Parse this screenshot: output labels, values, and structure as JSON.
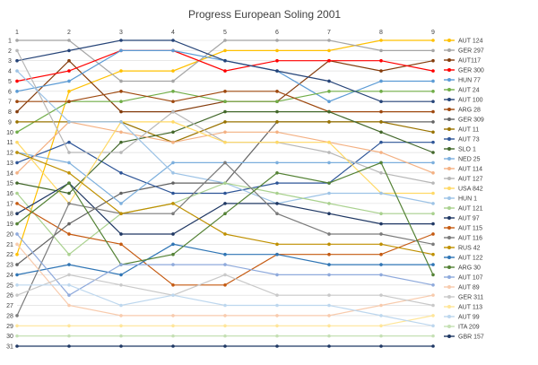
{
  "chart_data": {
    "type": "line",
    "title": "Progress European Soling 2001",
    "xlabel": "",
    "ylabel": "",
    "x": [
      1,
      2,
      3,
      4,
      5,
      6,
      7,
      8,
      9
    ],
    "ylim": [
      1,
      31
    ],
    "y_inverted": true,
    "grid": true,
    "legend": "right",
    "series": [
      {
        "name": "AUT 124",
        "color": "#ffc000",
        "values": [
          22,
          6,
          4,
          4,
          2,
          2,
          2,
          1,
          1
        ]
      },
      {
        "name": "GER 297",
        "color": "#a5a5a5",
        "values": [
          1,
          1,
          5,
          5,
          1,
          1,
          1,
          2,
          2
        ]
      },
      {
        "name": "AUT117",
        "color": "#843c0c",
        "values": [
          8,
          3,
          8,
          8,
          7,
          7,
          3,
          4,
          3
        ]
      },
      {
        "name": "GER 300",
        "color": "#ff0000",
        "values": [
          5,
          4,
          2,
          2,
          4,
          3,
          3,
          3,
          4
        ]
      },
      {
        "name": "HUN 77",
        "color": "#5b9bd5",
        "values": [
          6,
          5,
          2,
          2,
          3,
          4,
          7,
          5,
          5
        ]
      },
      {
        "name": "AUT 24",
        "color": "#70ad47",
        "values": [
          10,
          7,
          7,
          6,
          7,
          7,
          6,
          6,
          6
        ]
      },
      {
        "name": "AUT 100",
        "color": "#264478",
        "values": [
          3,
          2,
          1,
          1,
          3,
          4,
          5,
          7,
          7
        ]
      },
      {
        "name": "ARG 28",
        "color": "#9e480e",
        "values": [
          7,
          7,
          6,
          7,
          6,
          6,
          8,
          8,
          8
        ]
      },
      {
        "name": "GER 309",
        "color": "#636363",
        "values": [
          23,
          19,
          16,
          15,
          15,
          9,
          9,
          9,
          9
        ]
      },
      {
        "name": "AUT 11",
        "color": "#997300",
        "values": [
          9,
          9,
          9,
          11,
          9,
          9,
          9,
          9,
          10
        ]
      },
      {
        "name": "AUT 73",
        "color": "#2e5597",
        "values": [
          13,
          11,
          14,
          16,
          16,
          15,
          15,
          11,
          11
        ]
      },
      {
        "name": "SLO 1",
        "color": "#43682b",
        "values": [
          15,
          16,
          11,
          10,
          8,
          8,
          8,
          10,
          12
        ]
      },
      {
        "name": "NED 25",
        "color": "#7cafdd",
        "values": [
          12,
          13,
          17,
          13,
          13,
          13,
          13,
          13,
          13
        ]
      },
      {
        "name": "AUT 114",
        "color": "#f4b183",
        "values": [
          14,
          9,
          10,
          11,
          10,
          10,
          11,
          12,
          14
        ]
      },
      {
        "name": "AUT 127",
        "color": "#b7b7b7",
        "values": [
          2,
          12,
          12,
          8,
          11,
          11,
          12,
          14,
          15
        ]
      },
      {
        "name": "USA 842",
        "color": "#ffd966",
        "values": [
          11,
          17,
          9,
          9,
          11,
          11,
          11,
          16,
          16
        ]
      },
      {
        "name": "HUN 1",
        "color": "#9dc3e6",
        "values": [
          4,
          9,
          9,
          14,
          15,
          17,
          16,
          16,
          17
        ]
      },
      {
        "name": "AUT 121",
        "color": "#a9d18e",
        "values": [
          16,
          22,
          18,
          17,
          15,
          16,
          17,
          18,
          18
        ]
      },
      {
        "name": "AUT 97",
        "color": "#203864",
        "values": [
          18,
          15,
          20,
          20,
          17,
          17,
          18,
          19,
          19
        ]
      },
      {
        "name": "AUT 115",
        "color": "#c55a11",
        "values": [
          17,
          20,
          21,
          25,
          25,
          22,
          22,
          22,
          20
        ]
      },
      {
        "name": "AUT 116",
        "color": "#7b7b7b",
        "values": [
          28,
          17,
          18,
          18,
          13,
          18,
          20,
          20,
          21
        ]
      },
      {
        "name": "RUS 42",
        "color": "#bf9000",
        "values": [
          12,
          14,
          18,
          17,
          20,
          21,
          21,
          21,
          22
        ]
      },
      {
        "name": "AUT 122",
        "color": "#2f75b5",
        "values": [
          24,
          23,
          24,
          21,
          22,
          22,
          23,
          23,
          23
        ]
      },
      {
        "name": "ARG 30",
        "color": "#548235",
        "values": [
          19,
          15,
          23,
          22,
          18,
          14,
          15,
          13,
          24
        ]
      },
      {
        "name": "AUT 107",
        "color": "#8faadc",
        "values": [
          20,
          26,
          23,
          23,
          23,
          24,
          24,
          24,
          25
        ]
      },
      {
        "name": "AUT 89",
        "color": "#f8cbad",
        "values": [
          21,
          27,
          28,
          28,
          28,
          28,
          28,
          27,
          26
        ]
      },
      {
        "name": "GER 311",
        "color": "#c9c9c9",
        "values": [
          26,
          24,
          25,
          26,
          24,
          26,
          26,
          26,
          27
        ]
      },
      {
        "name": "AUT 113",
        "color": "#ffe699",
        "values": [
          29,
          29,
          29,
          29,
          29,
          29,
          29,
          29,
          28
        ]
      },
      {
        "name": "AUT 99",
        "color": "#bdd7ee",
        "values": [
          25,
          25,
          27,
          26,
          27,
          27,
          27,
          28,
          29
        ]
      },
      {
        "name": "ITA 209",
        "color": "#c5e0b4",
        "values": [
          30,
          30,
          30,
          30,
          30,
          30,
          30,
          30,
          30
        ]
      },
      {
        "name": "GBR 157",
        "color": "#1f3864",
        "values": [
          31,
          31,
          31,
          31,
          31,
          31,
          31,
          31,
          31
        ]
      }
    ]
  }
}
